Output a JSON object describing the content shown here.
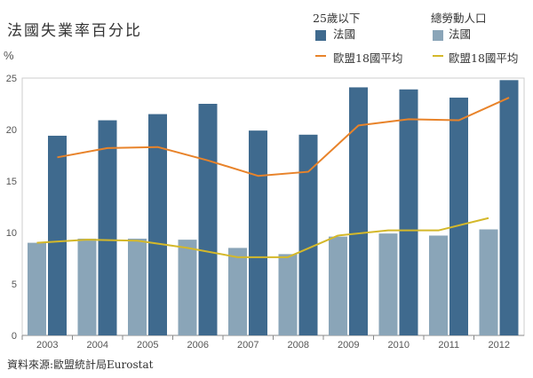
{
  "title": "法國失業率百分比",
  "unit": "%",
  "source": "資料來源:歐盟統計局Eurostat",
  "legend": {
    "group1": "25歲以下",
    "group2": "總勞動人口",
    "france": "法國",
    "eu": "歐盟18國平均"
  },
  "colors": {
    "youth_france": "#3f6a8e",
    "total_france": "#8aa5b8",
    "youth_eu": "#e8832a",
    "total_eu": "#d4b82a"
  },
  "chart_data": {
    "type": "bar",
    "categories": [
      "2003",
      "2004",
      "2005",
      "2006",
      "2007",
      "2008",
      "2009",
      "2010",
      "2011",
      "2012"
    ],
    "ylim": [
      0,
      25
    ],
    "yticks": [
      "0",
      "5",
      "10",
      "15",
      "20",
      "25"
    ],
    "series": [
      {
        "name": "總勞動人口 法國",
        "kind": "bar",
        "values": [
          9.0,
          9.4,
          9.4,
          9.3,
          8.5,
          7.9,
          9.6,
          9.9,
          9.7,
          10.3
        ]
      },
      {
        "name": "25歲以下 法國",
        "kind": "bar",
        "values": [
          19.4,
          20.9,
          21.5,
          22.5,
          19.9,
          19.5,
          24.1,
          23.9,
          23.1,
          24.8
        ]
      },
      {
        "name": "25歲以下 歐盟18國平均",
        "kind": "line",
        "values": [
          17.3,
          18.2,
          18.3,
          17.0,
          15.5,
          15.9,
          20.4,
          21.0,
          20.9,
          23.1
        ]
      },
      {
        "name": "總勞動人口 歐盟18國平均",
        "kind": "line",
        "values": [
          9.0,
          9.3,
          9.2,
          8.5,
          7.6,
          7.6,
          9.7,
          10.2,
          10.2,
          11.4
        ]
      }
    ]
  }
}
